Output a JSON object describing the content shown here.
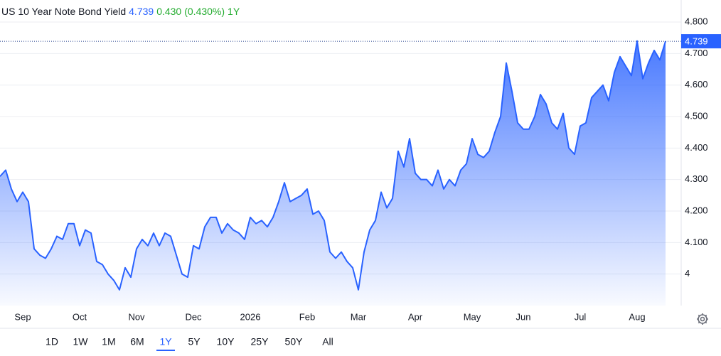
{
  "chart_data": {
    "type": "line",
    "title": "US 10 Year Note Bond Yield",
    "change": "0.430",
    "change_pct": "(0.430%)",
    "period": "1Y",
    "categories": [
      null,
      null,
      null,
      null,
      "Sep",
      null,
      null,
      null,
      null,
      null,
      null,
      null,
      null,
      null,
      "Oct",
      null,
      null,
      null,
      null,
      null,
      null,
      null,
      null,
      null,
      "Nov",
      null,
      null,
      null,
      null,
      null,
      null,
      null,
      null,
      null,
      "Dec",
      null,
      null,
      null,
      null,
      null,
      null,
      null,
      null,
      null,
      "2026",
      null,
      null,
      null,
      null,
      null,
      null,
      null,
      null,
      null,
      "Feb",
      null,
      null,
      null,
      null,
      null,
      null,
      null,
      null,
      "Mar",
      null,
      null,
      null,
      null,
      null,
      null,
      null,
      null,
      null,
      "Apr",
      null,
      null,
      null,
      null,
      null,
      null,
      null,
      null,
      null,
      "May",
      null,
      null,
      null,
      null,
      null,
      null,
      null,
      null,
      "Jun",
      null,
      null,
      null,
      null,
      null,
      null,
      null,
      null,
      null,
      "Jul",
      null,
      null,
      null,
      null,
      null,
      null,
      null,
      null,
      null,
      "Aug",
      null,
      null,
      null,
      null,
      null
    ],
    "values": [
      4.31,
      4.33,
      4.27,
      4.23,
      4.26,
      4.23,
      4.08,
      4.06,
      4.05,
      4.08,
      4.12,
      4.11,
      4.16,
      4.16,
      4.09,
      4.14,
      4.13,
      4.04,
      4.03,
      4.0,
      3.98,
      3.95,
      4.02,
      3.99,
      4.08,
      4.11,
      4.09,
      4.13,
      4.09,
      4.13,
      4.12,
      4.06,
      4.0,
      3.99,
      4.09,
      4.08,
      4.15,
      4.18,
      4.18,
      4.13,
      4.16,
      4.14,
      4.13,
      4.11,
      4.18,
      4.16,
      4.17,
      4.15,
      4.18,
      4.23,
      4.29,
      4.23,
      4.24,
      4.25,
      4.27,
      4.19,
      4.2,
      4.17,
      4.07,
      4.05,
      4.07,
      4.04,
      4.02,
      3.95,
      4.07,
      4.14,
      4.17,
      4.26,
      4.21,
      4.24,
      4.39,
      4.34,
      4.43,
      4.32,
      4.3,
      4.3,
      4.28,
      4.33,
      4.27,
      4.3,
      4.28,
      4.33,
      4.35,
      4.43,
      4.38,
      4.37,
      4.39,
      4.45,
      4.5,
      4.67,
      4.58,
      4.48,
      4.46,
      4.46,
      4.5,
      4.57,
      4.54,
      4.48,
      4.46,
      4.51,
      4.4,
      4.38,
      4.47,
      4.48,
      4.56,
      4.58,
      4.6,
      4.55,
      4.64,
      4.69,
      4.66,
      4.63,
      4.74,
      4.62,
      4.67,
      4.71,
      4.68,
      4.739
    ],
    "color": "#2962ff",
    "ylim": [
      3.9,
      4.87
    ],
    "yticks": [
      4,
      {
        "value": 4.1,
        "label": "4.100"
      },
      {
        "value": 4.2,
        "label": "4.200"
      },
      {
        "value": 4.3,
        "label": "4.300"
      },
      {
        "value": 4.4,
        "label": "4.400"
      },
      {
        "value": 4.5,
        "label": "4.500"
      },
      {
        "value": 4.6,
        "label": "4.600"
      },
      {
        "value": 4.7,
        "label": "4.700"
      },
      {
        "value": 4.8,
        "label": "4.800"
      }
    ],
    "grid": true,
    "ranges": [
      "1D",
      "1W",
      "1M",
      "6M",
      "1Y",
      "5Y",
      "10Y",
      "25Y",
      "50Y",
      "All"
    ],
    "selected_range": "1Y"
  }
}
